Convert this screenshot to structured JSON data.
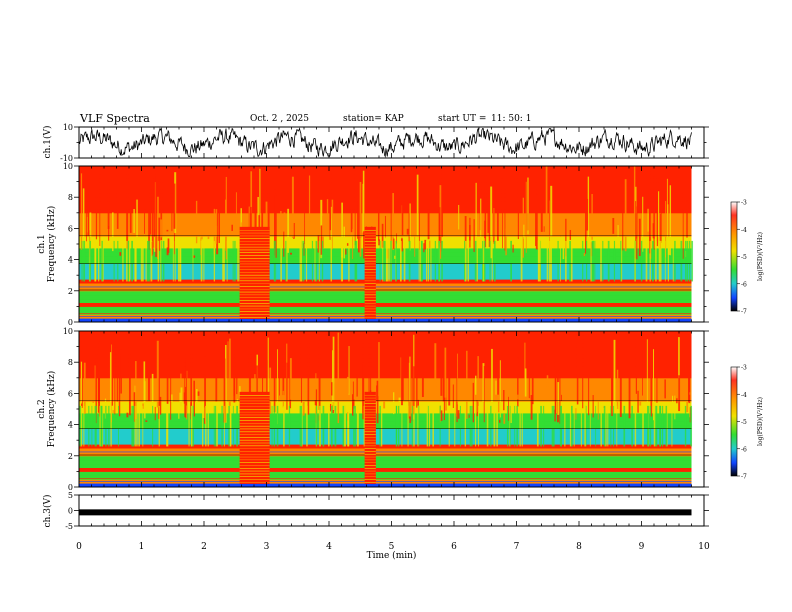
{
  "header": {
    "title": "VLF Spectra",
    "date_label": "Oct. 2 , 2025",
    "station_label": "station= KAP",
    "start_label": "start UT =",
    "start_time": "11: 50: 1"
  },
  "chart_data": [
    {
      "type": "line",
      "name": "ch1-waveform",
      "ylabel": "ch.1(V)",
      "ylim": [
        -10,
        10
      ],
      "yticks": [
        "10",
        "-10"
      ],
      "xlim": [
        0,
        10
      ],
      "x_end": 9.8,
      "description_series": "noise waveform oscillating roughly between -7 and 7 V"
    },
    {
      "type": "heatmap",
      "name": "ch1-spectrogram",
      "ylabel_lines": [
        "ch.1",
        "Frequency (kHz)"
      ],
      "ylim": [
        0,
        10
      ],
      "yticks": [
        "0",
        "2",
        "4",
        "6",
        "8",
        "10"
      ],
      "xlim": [
        0,
        10
      ],
      "data_x_end": 9.8,
      "bursts_min": [
        [
          2.57,
          3.05
        ],
        [
          4.57,
          4.75
        ]
      ],
      "colorbar": {
        "label": "log(PSD)(V²/Hz)",
        "ticks": [
          "-3",
          "-4",
          "-5",
          "-6",
          "-7"
        ],
        "range": [
          -7,
          -3
        ]
      }
    },
    {
      "type": "heatmap",
      "name": "ch2-spectrogram",
      "ylabel_lines": [
        "ch.2",
        "Frequency (kHz)"
      ],
      "ylim": [
        0,
        10
      ],
      "yticks": [
        "0",
        "2",
        "4",
        "6",
        "8",
        "10"
      ],
      "xlim": [
        0,
        10
      ],
      "data_x_end": 9.8,
      "bursts_min": [
        [
          2.57,
          3.05
        ],
        [
          4.57,
          4.75
        ]
      ],
      "colorbar": {
        "label": "log(PSD)(V²/Hz)",
        "ticks": [
          "-3",
          "-4",
          "-5",
          "-6",
          "-7"
        ],
        "range": [
          -7,
          -3
        ]
      }
    },
    {
      "type": "line",
      "name": "ch3-waveform",
      "ylabel": "ch.3(V)",
      "ylim": [
        -5,
        5
      ],
      "yticks": [
        "5",
        "0",
        "-5"
      ],
      "xlim": [
        0,
        10
      ],
      "x_end": 9.8,
      "level": -0.6
    }
  ],
  "x_axis": {
    "label": "Time (min)",
    "ticks": [
      "0",
      "1",
      "2",
      "3",
      "4",
      "5",
      "6",
      "7",
      "8",
      "9",
      "10"
    ]
  },
  "colors": {
    "red": "#ff2200",
    "orange": "#ff8800",
    "yellow": "#f0e000",
    "green": "#33dd33",
    "cyan": "#22cccc",
    "blue": "#1144ff"
  }
}
